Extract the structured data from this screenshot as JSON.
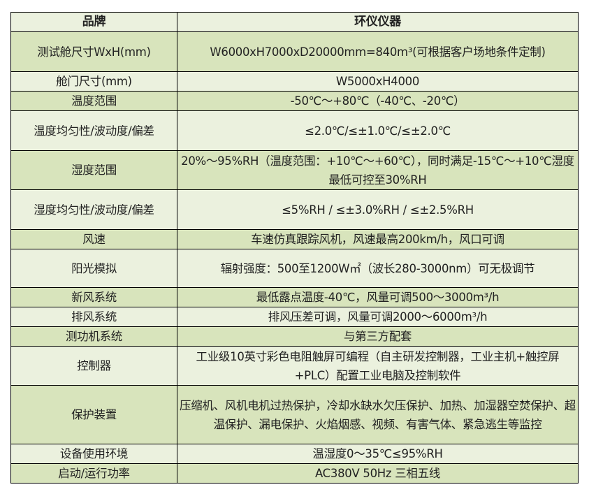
{
  "header": {
    "key": "品牌",
    "value": "环仪仪器"
  },
  "rows": [
    {
      "key": "测试舱尺寸WxH(mm)",
      "value": "W6000xH7000xD20000mm=840m³(可根据客户场地条件定制)",
      "h": 57
    },
    {
      "key": "舱门尺寸(mm)",
      "value": "W5000xH4000",
      "h": 27
    },
    {
      "key": "温度范围",
      "value": "-50℃～+80℃（-40℃、-20℃）",
      "h": 28
    },
    {
      "key": "温度均匀性/波动度/偏差",
      "value": "≤2.0℃/≤±1.0℃/≤±2.0℃",
      "h": 57
    },
    {
      "key": "湿度范围",
      "value": "20%～95%RH（温度范围：+10℃～+60℃），同时满足-15℃～+10℃湿度最低可控至30%RH",
      "h": 56
    },
    {
      "key": "湿度均匀性/波动度/偏差",
      "value": "≤5%RH / ≤±3.0%RH / ≤±2.5%RH",
      "h": 57
    },
    {
      "key": "风速",
      "value": "车速仿真跟踪风机，风速最高200km/h，风口可调",
      "h": 27
    },
    {
      "key": "阳光模拟",
      "value": "辐射强度：500至1200W㎡（波长280-3000nm）可无极调节",
      "h": 55
    },
    {
      "key": "新风系统",
      "value": "最低露点温度-40℃，风量可调500～3000m³/h",
      "h": 28
    },
    {
      "key": "排风系统",
      "value": "排风压差可调，风量可调2000～6000m³/h",
      "h": 27
    },
    {
      "key": "测功机系统",
      "value": "与第三方配套",
      "h": 28
    },
    {
      "key": "控制器",
      "value": "工业级10英寸彩色电阻触屏可编程（自主研发控制器，工业主机+触控屏+PLC）配置工业电脑及控制软件",
      "h": 56
    },
    {
      "key": "保护装置",
      "value": "压缩机、风机电机过热保护，冷却水缺水欠压保护、加热、加湿器空焚保护、超温保护、漏电保护、火焰烟感、视频、有害气体、紧急逃生等监控",
      "h": 84
    },
    {
      "key": "设备使用环境",
      "value": "温湿度0～35℃≤95%RH",
      "h": 27
    },
    {
      "key": "启动/运行功率",
      "value": "AC380V 50Hz 三相五线",
      "h": 27
    }
  ]
}
